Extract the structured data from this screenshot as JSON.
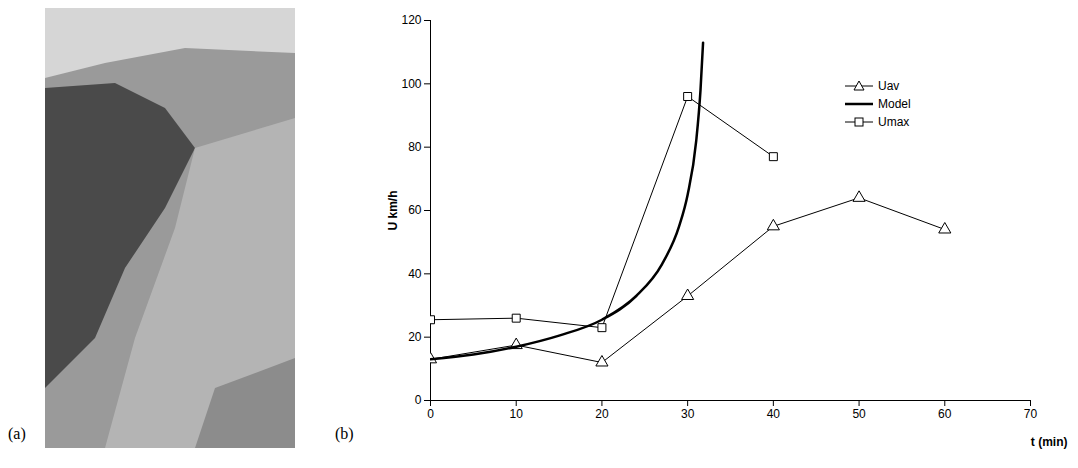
{
  "panels": [
    "(a)",
    "(b)"
  ],
  "chart_data": {
    "type": "line",
    "x_label": "t (min)",
    "y_label": "U km/h",
    "xlim": [
      0,
      70
    ],
    "xticks": [
      0,
      10,
      20,
      30,
      40,
      50,
      60,
      70
    ],
    "ylim": [
      0,
      120
    ],
    "yticks": [
      0,
      20,
      40,
      60,
      80,
      100,
      120
    ],
    "grid": false,
    "legend": "upper right",
    "series": [
      {
        "name": "Uav",
        "color": "#000000",
        "marker": "triangle",
        "line_style": "solid",
        "x": [
          0,
          10,
          20,
          30,
          40,
          50,
          60
        ],
        "values": [
          13,
          17.5,
          12,
          33,
          55,
          64,
          54
        ]
      },
      {
        "name": "Model",
        "color": "#000000",
        "marker": "none",
        "line_style": "solid",
        "x": [
          0,
          5,
          10,
          15,
          20,
          24,
          27,
          29,
          30,
          31,
          31.5,
          31.8
        ],
        "values": [
          13,
          14.5,
          17,
          20.5,
          25.5,
          33,
          43,
          55,
          65,
          82,
          98,
          113
        ]
      },
      {
        "name": "Umax",
        "color": "#000000",
        "marker": "square",
        "line_style": "solid",
        "x": [
          0,
          10,
          20,
          30,
          40
        ],
        "values": [
          25.5,
          26,
          23,
          96,
          77
        ]
      }
    ]
  }
}
